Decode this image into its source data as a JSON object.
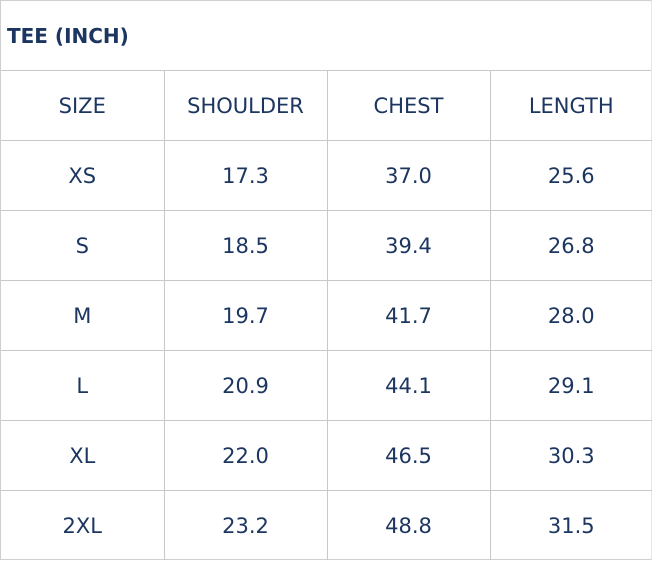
{
  "title": "TEE (INCH)",
  "headers": [
    "SIZE",
    "SHOULDER",
    "CHEST",
    "LENGTH"
  ],
  "rows": [
    [
      "XS",
      "17.3",
      "37.0",
      "25.6"
    ],
    [
      "S",
      "18.5",
      "39.4",
      "26.8"
    ],
    [
      "M",
      "19.7",
      "41.7",
      "28.0"
    ],
    [
      "L",
      "20.9",
      "44.1",
      "29.1"
    ],
    [
      "XL",
      "22.0",
      "46.5",
      "30.3"
    ],
    [
      "2XL",
      "23.2",
      "48.8",
      "31.5"
    ]
  ],
  "colors": {
    "text": "#1c3660",
    "border": "#c8c8c8"
  }
}
